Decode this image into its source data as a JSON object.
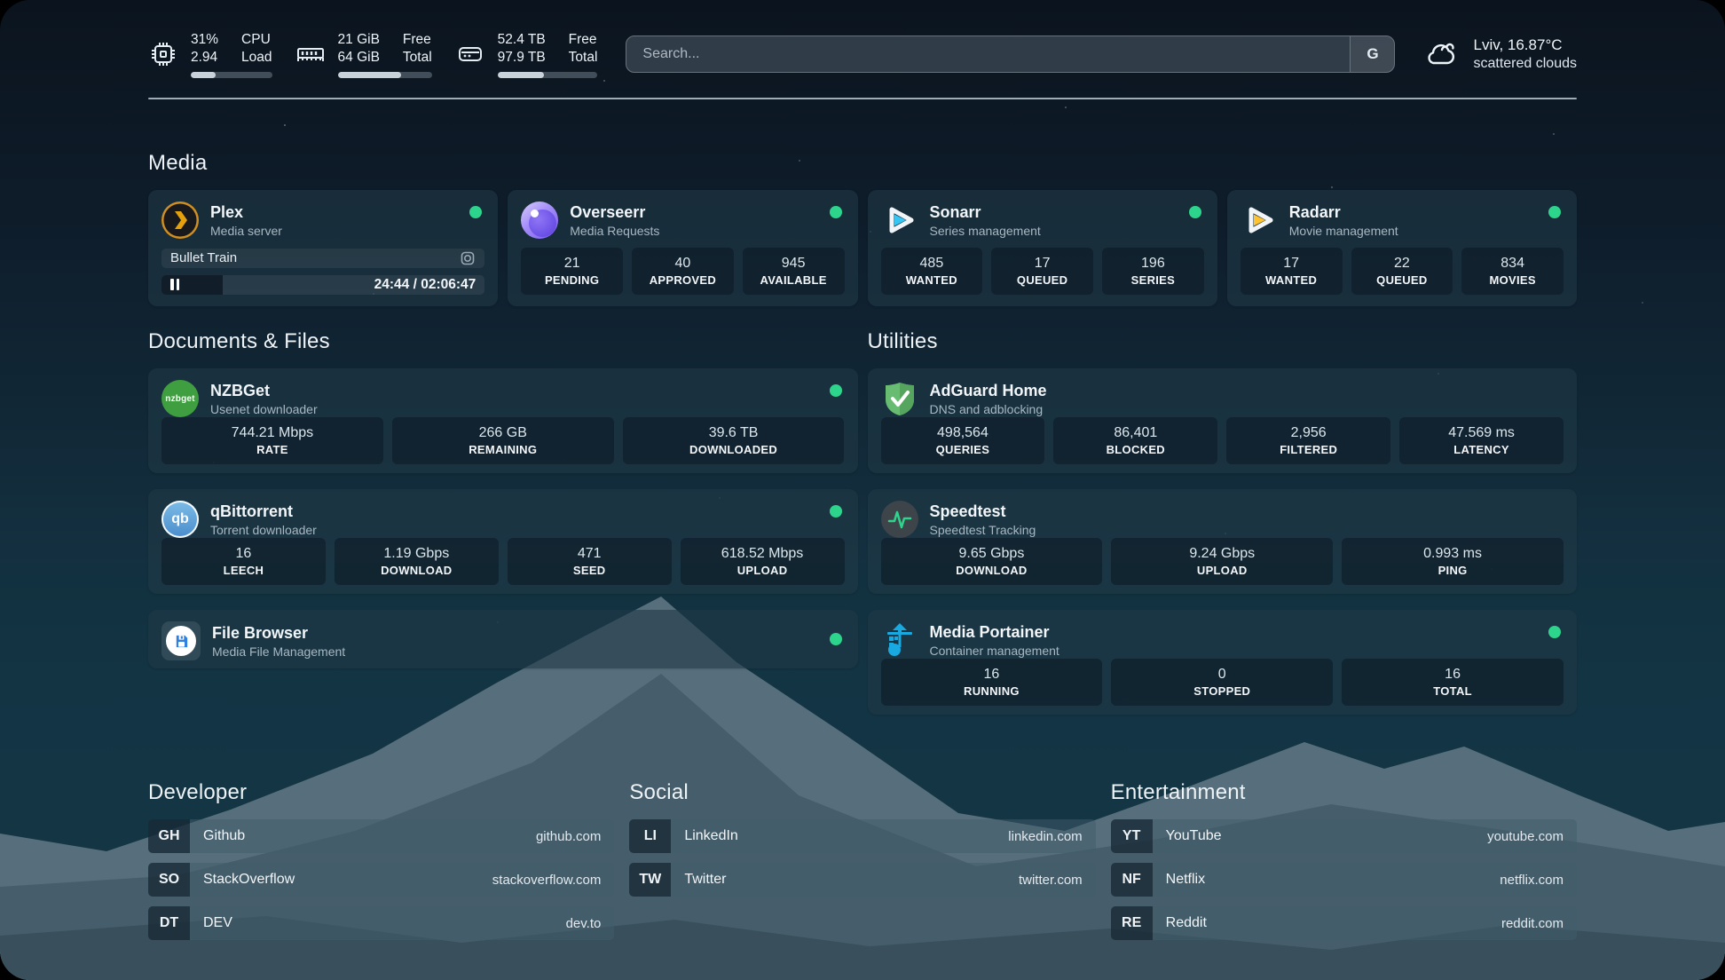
{
  "topbar": {
    "cpu": {
      "value_top": "31%",
      "value_bottom": "2.94",
      "label_top": "CPU",
      "label_bottom": "Load",
      "percent": 31
    },
    "memory": {
      "value_top": "21 GiB",
      "value_bottom": "64 GiB",
      "label_top": "Free",
      "label_bottom": "Total",
      "percent": 67
    },
    "disk": {
      "value_top": "52.4 TB",
      "value_bottom": "97.9 TB",
      "label_top": "Free",
      "label_bottom": "Total",
      "percent": 46
    },
    "search": {
      "placeholder": "Search...",
      "button_label": "G"
    },
    "weather": {
      "location": "Lviv, 16.87°C",
      "condition": "scattered clouds"
    }
  },
  "sections": {
    "media": "Media",
    "documents": "Documents & Files",
    "utilities": "Utilities",
    "developer": "Developer",
    "social": "Social",
    "entertainment": "Entertainment"
  },
  "apps": {
    "plex": {
      "name": "Plex",
      "subtitle": "Media server",
      "now_playing": "Bullet Train",
      "time_text": "24:44 / 02:06:47",
      "progress_percent": 19
    },
    "overseerr": {
      "name": "Overseerr",
      "subtitle": "Media Requests",
      "stats": [
        {
          "value": "21",
          "label": "PENDING"
        },
        {
          "value": "40",
          "label": "APPROVED"
        },
        {
          "value": "945",
          "label": "AVAILABLE"
        }
      ]
    },
    "sonarr": {
      "name": "Sonarr",
      "subtitle": "Series management",
      "stats": [
        {
          "value": "485",
          "label": "WANTED"
        },
        {
          "value": "17",
          "label": "QUEUED"
        },
        {
          "value": "196",
          "label": "SERIES"
        }
      ]
    },
    "radarr": {
      "name": "Radarr",
      "subtitle": "Movie management",
      "stats": [
        {
          "value": "17",
          "label": "WANTED"
        },
        {
          "value": "22",
          "label": "QUEUED"
        },
        {
          "value": "834",
          "label": "MOVIES"
        }
      ]
    },
    "nzbget": {
      "name": "NZBGet",
      "subtitle": "Usenet downloader",
      "logo_text": "nzbget",
      "stats": [
        {
          "value": "744.21 Mbps",
          "label": "RATE"
        },
        {
          "value": "266 GB",
          "label": "REMAINING"
        },
        {
          "value": "39.6 TB",
          "label": "DOWNLOADED"
        }
      ]
    },
    "qbittorrent": {
      "name": "qBittorrent",
      "subtitle": "Torrent downloader",
      "logo_text": "qb",
      "stats": [
        {
          "value": "16",
          "label": "LEECH"
        },
        {
          "value": "1.19 Gbps",
          "label": "DOWNLOAD"
        },
        {
          "value": "471",
          "label": "SEED"
        },
        {
          "value": "618.52 Mbps",
          "label": "UPLOAD"
        }
      ]
    },
    "filebrowser": {
      "name": "File Browser",
      "subtitle": "Media File Management"
    },
    "adguard": {
      "name": "AdGuard Home",
      "subtitle": "DNS and adblocking",
      "stats": [
        {
          "value": "498,564",
          "label": "QUERIES"
        },
        {
          "value": "86,401",
          "label": "BLOCKED"
        },
        {
          "value": "2,956",
          "label": "FILTERED"
        },
        {
          "value": "47.569 ms",
          "label": "LATENCY"
        }
      ]
    },
    "speedtest": {
      "name": "Speedtest",
      "subtitle": "Speedtest Tracking",
      "stats": [
        {
          "value": "9.65 Gbps",
          "label": "DOWNLOAD"
        },
        {
          "value": "9.24 Gbps",
          "label": "UPLOAD"
        },
        {
          "value": "0.993 ms",
          "label": "PING"
        }
      ]
    },
    "portainer": {
      "name": "Media Portainer",
      "subtitle": "Container management",
      "stats": [
        {
          "value": "16",
          "label": "RUNNING"
        },
        {
          "value": "0",
          "label": "STOPPED"
        },
        {
          "value": "16",
          "label": "TOTAL"
        }
      ]
    }
  },
  "links": {
    "developer": [
      {
        "abbr": "GH",
        "name": "Github",
        "url": "github.com"
      },
      {
        "abbr": "SO",
        "name": "StackOverflow",
        "url": "stackoverflow.com"
      },
      {
        "abbr": "DT",
        "name": "DEV",
        "url": "dev.to"
      }
    ],
    "social": [
      {
        "abbr": "LI",
        "name": "LinkedIn",
        "url": "linkedin.com"
      },
      {
        "abbr": "TW",
        "name": "Twitter",
        "url": "twitter.com"
      }
    ],
    "entertainment": [
      {
        "abbr": "YT",
        "name": "YouTube",
        "url": "youtube.com"
      },
      {
        "abbr": "NF",
        "name": "Netflix",
        "url": "netflix.com"
      },
      {
        "abbr": "RE",
        "name": "Reddit",
        "url": "reddit.com"
      }
    ]
  },
  "colors": {
    "online": "#2cd48c",
    "plex_orange": "#e5a00d",
    "sonarr_blue": "#36c6f4",
    "radarr_yellow": "#ffc230",
    "adguard_green": "#68bc71",
    "portainer_blue": "#18a9e0"
  }
}
